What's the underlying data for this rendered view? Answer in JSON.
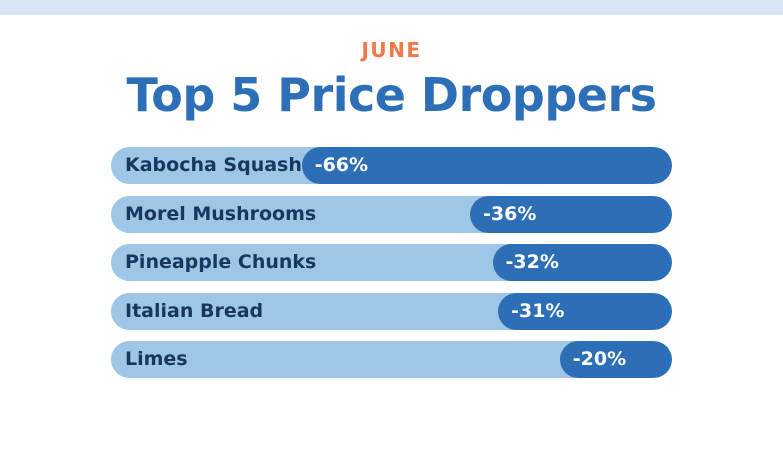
{
  "header": {
    "kicker": "JUNE",
    "title": "Top 5 Price Droppers"
  },
  "colors": {
    "accent": "#ee7a45",
    "title": "#2d6fb7",
    "bar_fill": "#2d6fb7",
    "bar_track": "#9dc6e7",
    "label": "#17375e"
  },
  "chart_data": {
    "type": "bar",
    "orientation": "horizontal",
    "title": "Top 5 Price Droppers",
    "subtitle": "JUNE",
    "categories": [
      "Kabocha Squash",
      "Morel Mushrooms",
      "Pineapple Chunks",
      "Italian Bread",
      "Limes"
    ],
    "values": [
      -66,
      -36,
      -32,
      -31,
      -20
    ],
    "value_labels": [
      "-66%",
      "-36%",
      "-32%",
      "-31%",
      "-20%"
    ],
    "unit": "%",
    "grid": false,
    "legend": "none"
  }
}
